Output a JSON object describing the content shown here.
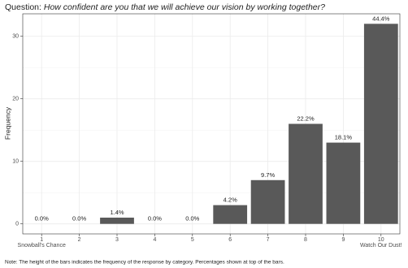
{
  "chart_data": {
    "type": "bar",
    "title_label": "Question:",
    "title": "How confident are you that we will achieve our vision by working together?",
    "y_label": "Frequency",
    "categories": [
      "1",
      "2",
      "3",
      "4",
      "5",
      "6",
      "7",
      "8",
      "9",
      "10"
    ],
    "category_notes": [
      "Snowball's Chance",
      null,
      null,
      null,
      null,
      null,
      null,
      null,
      null,
      "Watch Our Dust!"
    ],
    "values": [
      0,
      0,
      1,
      0,
      0,
      3,
      7,
      16,
      13,
      32
    ],
    "value_labels": [
      "0.0%",
      "0.0%",
      "1.4%",
      "0.0%",
      "0.0%",
      "4.2%",
      "9.7%",
      "22.2%",
      "18.1%",
      "44.4%"
    ],
    "color": "#595959",
    "ylim": [
      -1.6,
      33.6
    ],
    "yticks": [
      0,
      10,
      20,
      30
    ],
    "minor_yticks": [
      5,
      15,
      25
    ],
    "grid": true,
    "note": "Note: The height of the bars indicates the frequency of the response by category. Percentages shown at top of the bars."
  }
}
